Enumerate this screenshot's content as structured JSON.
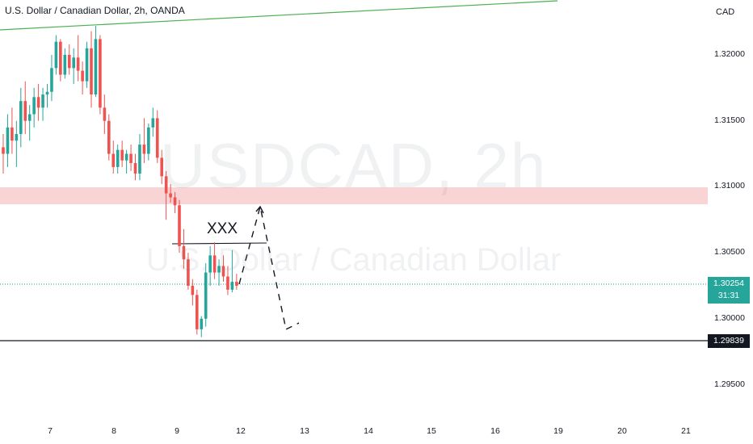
{
  "header": {
    "title": "U.S. Dollar / Canadian Dollar, 2h, OANDA",
    "currency": "CAD"
  },
  "watermark": {
    "symbol": "USDCAD, 2h",
    "name": "U.S. Dollar / Canadian Dollar"
  },
  "annotation": "XXX",
  "price_badge": {
    "price": "1.30254",
    "countdown": "31:31"
  },
  "level_badge": "1.29839",
  "colors": {
    "up": "#26a69a",
    "down": "#ef5350",
    "trendline": "#4caf50",
    "zone": "#f7c6c7",
    "level": "#131722"
  },
  "chart_data": {
    "type": "candlestick",
    "title": "U.S. Dollar / Canadian Dollar, 2h, OANDA",
    "y_unit": "CAD",
    "y_ticks": [
      "1.32000",
      "1.31500",
      "1.31000",
      "1.30500",
      "1.30000",
      "1.29500"
    ],
    "x_ticks": [
      "7",
      "8",
      "9",
      "12",
      "13",
      "14",
      "15",
      "16",
      "19",
      "20",
      "21"
    ],
    "ylim": [
      1.2925,
      1.3232
    ],
    "current_price": 1.30254,
    "support_level": 1.29839,
    "resistance_zone": [
      1.3087,
      1.3099
    ],
    "trendline": {
      "start_price": 1.3223,
      "end_price": 1.3239
    },
    "projected_path": [
      1.3024,
      1.3084,
      1.2988,
      1.2995
    ],
    "candles": [
      [
        1.313,
        1.314,
        1.311,
        1.3125
      ],
      [
        1.3125,
        1.3155,
        1.3115,
        1.3145
      ],
      [
        1.3145,
        1.316,
        1.3125,
        1.3135
      ],
      [
        1.3135,
        1.315,
        1.3115,
        1.314
      ],
      [
        1.314,
        1.3175,
        1.313,
        1.3165
      ],
      [
        1.3165,
        1.318,
        1.314,
        1.315
      ],
      [
        1.315,
        1.3162,
        1.3135,
        1.3155
      ],
      [
        1.3155,
        1.3175,
        1.3145,
        1.3168
      ],
      [
        1.3168,
        1.3178,
        1.315,
        1.316
      ],
      [
        1.316,
        1.3175,
        1.315,
        1.317
      ],
      [
        1.317,
        1.3178,
        1.316,
        1.3172
      ],
      [
        1.3172,
        1.32,
        1.3165,
        1.319
      ],
      [
        1.319,
        1.3215,
        1.3185,
        1.321
      ],
      [
        1.321,
        1.3212,
        1.318,
        1.3185
      ],
      [
        1.3185,
        1.3205,
        1.3182,
        1.32
      ],
      [
        1.32,
        1.3208,
        1.3185,
        1.319
      ],
      [
        1.319,
        1.3205,
        1.3178,
        1.3198
      ],
      [
        1.3198,
        1.3215,
        1.318,
        1.3188
      ],
      [
        1.3188,
        1.3195,
        1.317,
        1.318
      ],
      [
        1.318,
        1.321,
        1.3175,
        1.3205
      ],
      [
        1.3205,
        1.3218,
        1.316,
        1.317
      ],
      [
        1.317,
        1.3222,
        1.3168,
        1.3212
      ],
      [
        1.3212,
        1.3215,
        1.3155,
        1.316
      ],
      [
        1.316,
        1.317,
        1.314,
        1.315
      ],
      [
        1.315,
        1.3155,
        1.312,
        1.3125
      ],
      [
        1.3125,
        1.3135,
        1.311,
        1.3115
      ],
      [
        1.3115,
        1.3132,
        1.311,
        1.3128
      ],
      [
        1.3128,
        1.3135,
        1.3115,
        1.312
      ],
      [
        1.312,
        1.3128,
        1.311,
        1.3125
      ],
      [
        1.3125,
        1.3132,
        1.3112,
        1.3118
      ],
      [
        1.3118,
        1.3125,
        1.3105,
        1.311
      ],
      [
        1.311,
        1.314,
        1.3105,
        1.3132
      ],
      [
        1.3132,
        1.3152,
        1.3118,
        1.3125
      ],
      [
        1.3125,
        1.3148,
        1.312,
        1.3145
      ],
      [
        1.3145,
        1.316,
        1.3138,
        1.3152
      ],
      [
        1.3152,
        1.3158,
        1.3118,
        1.3122
      ],
      [
        1.3122,
        1.3128,
        1.3102,
        1.3108
      ],
      [
        1.3108,
        1.3112,
        1.3075,
        1.3095
      ],
      [
        1.3095,
        1.3102,
        1.3088,
        1.3092
      ],
      [
        1.3092,
        1.3096,
        1.308,
        1.3086
      ],
      [
        1.3086,
        1.309,
        1.305,
        1.3055
      ],
      [
        1.3055,
        1.3068,
        1.3038,
        1.3045
      ],
      [
        1.3045,
        1.305,
        1.3022,
        1.3025
      ],
      [
        1.3025,
        1.303,
        1.301,
        1.3018
      ],
      [
        1.3018,
        1.3022,
        1.2988,
        1.2992
      ],
      [
        1.2992,
        1.3002,
        1.2986,
        1.3
      ],
      [
        1.3,
        1.3042,
        1.2994,
        1.3035
      ],
      [
        1.3035,
        1.3055,
        1.3025,
        1.3048
      ],
      [
        1.3048,
        1.3058,
        1.303,
        1.3035
      ],
      [
        1.3035,
        1.3045,
        1.3025,
        1.304
      ],
      [
        1.304,
        1.3048,
        1.3028,
        1.3032
      ],
      [
        1.3032,
        1.304,
        1.3018,
        1.3022
      ],
      [
        1.3022,
        1.3052,
        1.302,
        1.3028
      ],
      [
        1.3028,
        1.3034,
        1.3022,
        1.3025
      ]
    ]
  }
}
